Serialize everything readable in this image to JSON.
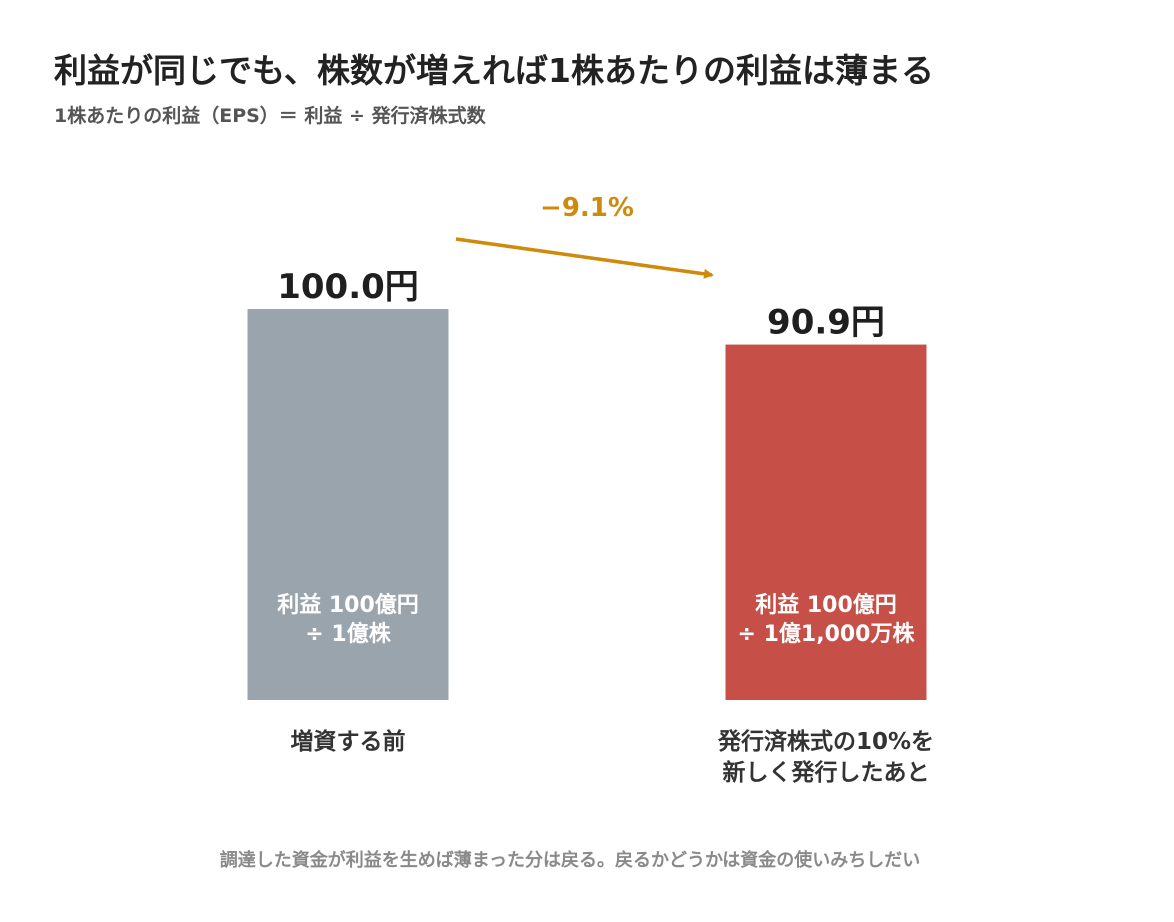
{
  "title": "利益が同じでも、株数が増えれば1株あたりの利益は薄まる",
  "subtitle": "1株あたりの利益（EPS）＝ 利益 ÷ 発行済株式数",
  "footnote": "調達した資金が利益を生めば薄まった分は戻る。戻るかどうかは資金の使いみちしだい",
  "colors": {
    "before_bar": "#9aa4ad",
    "after_bar": "#c64f48",
    "change_arrow": "#cf8a0c"
  },
  "chart_data": {
    "type": "bar",
    "title": "利益が同じでも、株数が増えれば1株あたりの利益は薄まる",
    "subtitle": "1株あたりの利益（EPS）＝ 利益 ÷ 発行済株式数",
    "unit": "円",
    "ylim": [
      0,
      100
    ],
    "grid": false,
    "categories": [
      [
        "増資する前"
      ],
      [
        "発行済株式の10%を",
        "新しく発行したあと"
      ]
    ],
    "values": [
      100.0,
      90.9
    ],
    "value_labels": [
      "100.0円",
      "90.9円"
    ],
    "inner_labels": [
      [
        "利益 100億円",
        "÷ 1億株"
      ],
      [
        "利益 100億円",
        "÷ 1億1,000万株"
      ]
    ],
    "change_annotation": "−9.1%"
  }
}
